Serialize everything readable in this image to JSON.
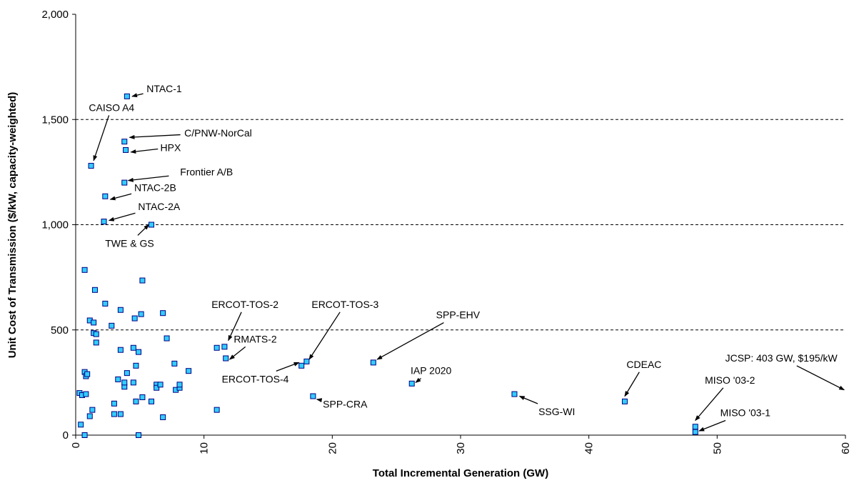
{
  "chart_data": {
    "type": "scatter",
    "title": "",
    "xlabel": "Total Incremental Generation (GW)",
    "ylabel": "Unit Cost of Transmission ($/kW, capacity-weighted)",
    "xlim": [
      0,
      60
    ],
    "ylim": [
      0,
      2000
    ],
    "xticks": [
      0,
      10,
      20,
      30,
      40,
      50,
      60
    ],
    "yticks": [
      0,
      500,
      1000,
      1500,
      2000
    ],
    "xtick_labels": [
      "0",
      "10",
      "20",
      "30",
      "40",
      "50",
      "60"
    ],
    "ytick_labels": [
      "0",
      "500",
      "1,000",
      "1,500",
      "2,000"
    ],
    "grid": "dashed horizontal at 500, 1,000, 1,500",
    "legend": "none",
    "marker_fill": "#33ccff",
    "marker_edge": "#000080",
    "points": [
      [
        0.3,
        200
      ],
      [
        0.4,
        50
      ],
      [
        0.5,
        190
      ],
      [
        0.7,
        300
      ],
      [
        0.7,
        0
      ],
      [
        0.8,
        280
      ],
      [
        0.8,
        195
      ],
      [
        0.9,
        290
      ],
      [
        0.7,
        785
      ],
      [
        1.1,
        90
      ],
      [
        1.1,
        545
      ],
      [
        1.3,
        120
      ],
      [
        1.4,
        485
      ],
      [
        1.4,
        535
      ],
      [
        1.5,
        690
      ],
      [
        1.6,
        440
      ],
      [
        1.6,
        480
      ],
      [
        2.3,
        625
      ],
      [
        2.8,
        520
      ],
      [
        3.0,
        100
      ],
      [
        3.0,
        150
      ],
      [
        3.3,
        265
      ],
      [
        3.5,
        100
      ],
      [
        3.5,
        405
      ],
      [
        3.5,
        595
      ],
      [
        3.8,
        230
      ],
      [
        3.8,
        250
      ],
      [
        4.0,
        295
      ],
      [
        4.5,
        415
      ],
      [
        4.5,
        250
      ],
      [
        4.6,
        555
      ],
      [
        4.7,
        160
      ],
      [
        4.7,
        330
      ],
      [
        4.9,
        395
      ],
      [
        4.9,
        0
      ],
      [
        5.2,
        735
      ],
      [
        5.1,
        575
      ],
      [
        5.2,
        180
      ],
      [
        5.9,
        160
      ],
      [
        6.3,
        240
      ],
      [
        6.3,
        225
      ],
      [
        6.6,
        240
      ],
      [
        6.8,
        580
      ],
      [
        6.8,
        85
      ],
      [
        7.1,
        460
      ],
      [
        7.7,
        340
      ],
      [
        7.8,
        215
      ],
      [
        8.1,
        225
      ],
      [
        8.1,
        240
      ],
      [
        8.8,
        305
      ],
      [
        11.0,
        120
      ],
      [
        11.0,
        415
      ],
      [
        1.2,
        1280
      ],
      [
        2.3,
        1135
      ],
      [
        2.2,
        1015
      ],
      [
        3.8,
        1395
      ],
      [
        3.9,
        1355
      ],
      [
        3.8,
        1200
      ],
      [
        4.0,
        1610
      ],
      [
        5.9,
        1000
      ],
      [
        11.6,
        420
      ],
      [
        11.7,
        365
      ],
      [
        17.6,
        330
      ],
      [
        18.0,
        350
      ],
      [
        18.5,
        185
      ],
      [
        23.2,
        345
      ],
      [
        26.2,
        245
      ],
      [
        34.2,
        195
      ],
      [
        42.8,
        160
      ],
      [
        48.3,
        40
      ],
      [
        48.3,
        15
      ]
    ],
    "annotations": [
      {
        "label": "NTAC-1",
        "text_x": 6.9,
        "text_y": 1630,
        "pt_x": 4.4,
        "pt_y": 1610
      },
      {
        "label": "CAISO A4",
        "text_x": 2.8,
        "text_y": 1540,
        "pt_x": 1.4,
        "pt_y": 1305
      },
      {
        "label": "C/PNW-NorCal",
        "text_x": 11.1,
        "text_y": 1420,
        "pt_x": 4.2,
        "pt_y": 1415
      },
      {
        "label": "HPX",
        "text_x": 7.4,
        "text_y": 1350,
        "pt_x": 4.3,
        "pt_y": 1345
      },
      {
        "label": "Frontier A/B",
        "text_x": 10.2,
        "text_y": 1235,
        "pt_x": 4.1,
        "pt_y": 1210
      },
      {
        "label": "NTAC-2B",
        "text_x": 6.2,
        "text_y": 1160,
        "pt_x": 2.7,
        "pt_y": 1120
      },
      {
        "label": "NTAC-2A",
        "text_x": 6.5,
        "text_y": 1070,
        "pt_x": 2.6,
        "pt_y": 1020
      },
      {
        "label": "TWE & GS",
        "text_x": 4.2,
        "text_y": 895,
        "pt_x": 5.7,
        "pt_y": 1000
      },
      {
        "label": "ERCOT-TOS-2",
        "text_x": 13.2,
        "text_y": 605,
        "pt_x": 11.9,
        "pt_y": 450
      },
      {
        "label": "ERCOT-TOS-3",
        "text_x": 21.0,
        "text_y": 605,
        "pt_x": 18.2,
        "pt_y": 360
      },
      {
        "label": "SPP-EHV",
        "text_x": 29.8,
        "text_y": 555,
        "pt_x": 23.5,
        "pt_y": 360
      },
      {
        "label": "RMATS-2",
        "text_x": 14.0,
        "text_y": 440,
        "pt_x": 12.0,
        "pt_y": 360
      },
      {
        "label": "ERCOT-TOS-4",
        "text_x": 14.0,
        "text_y": 250,
        "pt_x": 17.4,
        "pt_y": 345
      },
      {
        "label": "SPP-CRA",
        "text_x": 21.0,
        "text_y": 130,
        "pt_x": 18.8,
        "pt_y": 170
      },
      {
        "label": "IAP 2020",
        "text_x": 27.7,
        "text_y": 290,
        "pt_x": 26.5,
        "pt_y": 250
      },
      {
        "label": "SSG-WI",
        "text_x": 37.5,
        "text_y": 95,
        "pt_x": 34.6,
        "pt_y": 185
      },
      {
        "label": "CDEAC",
        "text_x": 44.3,
        "text_y": 320,
        "pt_x": 42.8,
        "pt_y": 185
      },
      {
        "label": "MISO '03-2",
        "text_x": 51.0,
        "text_y": 245,
        "pt_x": 48.3,
        "pt_y": 70
      },
      {
        "label": "MISO '03-1",
        "text_x": 52.2,
        "text_y": 90,
        "pt_x": 48.6,
        "pt_y": 20
      },
      {
        "label": "JCSP: 403 GW, $195/kW",
        "text_x": 55.0,
        "text_y": 350,
        "pt_x": 59.9,
        "pt_y": 215
      }
    ]
  }
}
